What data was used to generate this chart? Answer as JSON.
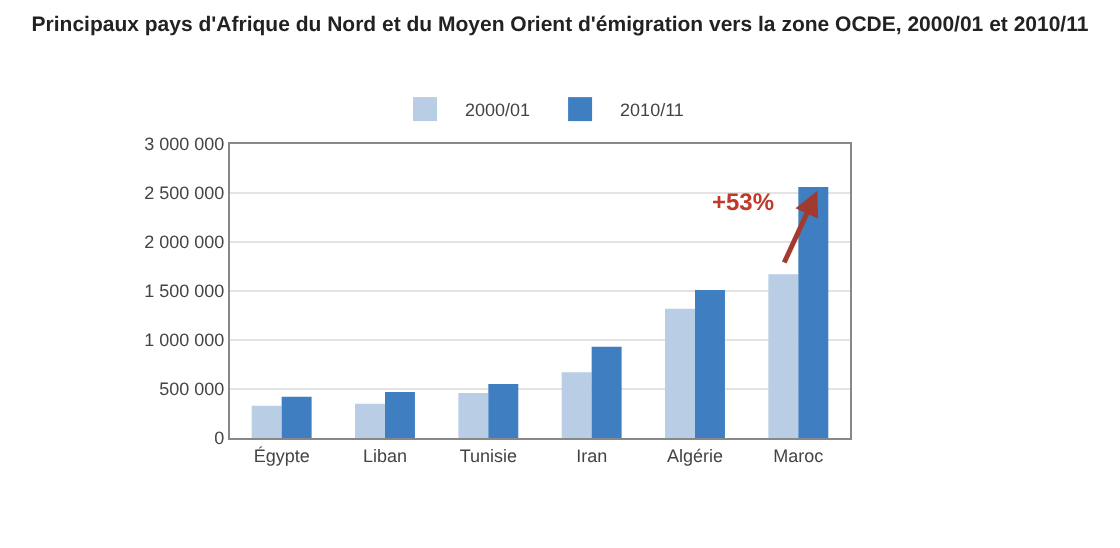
{
  "chart_data": {
    "type": "bar",
    "title": "Principaux pays d'Afrique du Nord et du Moyen Orient d'émigration vers la zone OCDE, 2000/01 et 2010/11",
    "categories": [
      "Égypte",
      "Liban",
      "Tunisie",
      "Iran",
      "Algérie",
      "Maroc"
    ],
    "series": [
      {
        "name": "2000/01",
        "color": "#b9cde5",
        "values": [
          330000,
          350000,
          460000,
          670000,
          1320000,
          1670000
        ]
      },
      {
        "name": "2010/11",
        "color": "#3f7fc1",
        "values": [
          420000,
          470000,
          550000,
          930000,
          1510000,
          2560000
        ]
      }
    ],
    "ylim": [
      0,
      3000000
    ],
    "yticks": [
      {
        "value": 0,
        "label": "0"
      },
      {
        "value": 500000,
        "label": "500 000"
      },
      {
        "value": 1000000,
        "label": "1 000 000"
      },
      {
        "value": 1500000,
        "label": "1 500 000"
      },
      {
        "value": 2000000,
        "label": "2 000 000"
      },
      {
        "value": 2500000,
        "label": "2 500 000"
      },
      {
        "value": 3000000,
        "label": "3 000 000"
      }
    ],
    "grid": "y",
    "legend": "top",
    "annotations": [
      {
        "text": "+53%",
        "x": "Maroc",
        "y": 2400000
      }
    ]
  }
}
